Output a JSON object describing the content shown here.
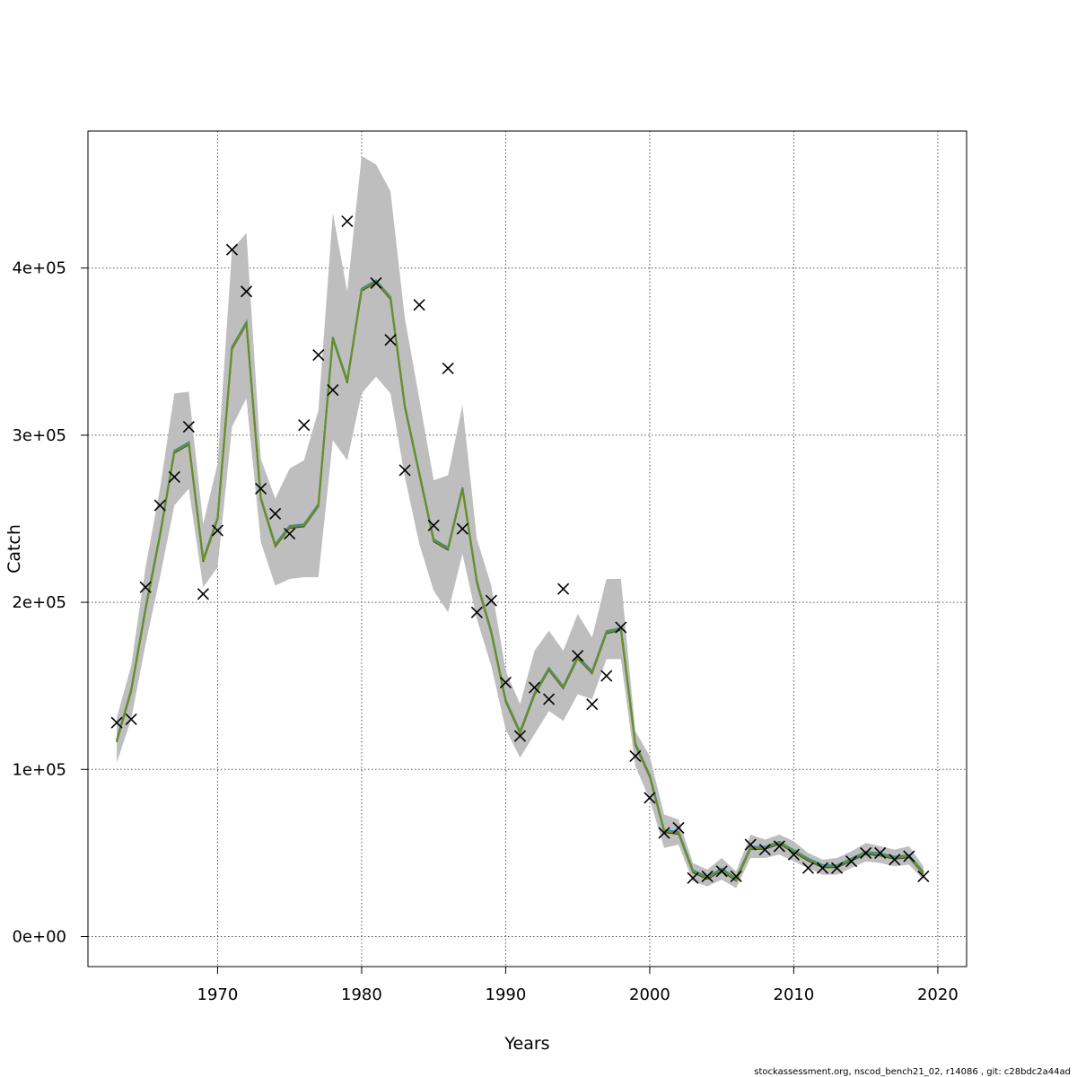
{
  "chart_data": {
    "type": "line",
    "title": "",
    "xlabel": "Years",
    "ylabel": "Catch",
    "footer": "stockassessment.org, nscod_bench21_02, r14086 , git: c28bdc2a44ad",
    "xlim": [
      1961,
      2022
    ],
    "ylim": [
      -18000,
      482000
    ],
    "x_ticks": [
      1970,
      1980,
      1990,
      2000,
      2010,
      2020
    ],
    "y_ticks": [
      0,
      100000,
      200000,
      300000,
      400000
    ],
    "y_tick_labels": [
      "0e+00",
      "1e+05",
      "2e+05",
      "3e+05",
      "4e+05"
    ],
    "grid": true,
    "colors": {
      "band": "#bebebe",
      "line_main": "#6b8e23",
      "line_alt1": "#1f6fb5",
      "line_alt2": "#20b2aa",
      "line_alt3": "#333333",
      "observed": "#000000",
      "grid": "#555555"
    },
    "years": [
      1963,
      1964,
      1965,
      1966,
      1967,
      1968,
      1969,
      1970,
      1971,
      1972,
      1973,
      1974,
      1975,
      1976,
      1977,
      1978,
      1979,
      1980,
      1981,
      1982,
      1983,
      1984,
      1985,
      1986,
      1987,
      1988,
      1989,
      1990,
      1991,
      1992,
      1993,
      1994,
      1995,
      1996,
      1997,
      1998,
      1999,
      2000,
      2001,
      2002,
      2003,
      2004,
      2005,
      2006,
      2007,
      2008,
      2009,
      2010,
      2011,
      2012,
      2013,
      2014,
      2015,
      2016,
      2017,
      2018,
      2019
    ],
    "fitted": [
      117000,
      147000,
      196000,
      240000,
      290000,
      295000,
      225000,
      250000,
      352000,
      367000,
      262000,
      234000,
      245000,
      246000,
      258000,
      358000,
      332000,
      387000,
      392000,
      382000,
      317000,
      277000,
      237000,
      232000,
      268000,
      212000,
      182000,
      141000,
      122000,
      145000,
      160000,
      149000,
      167000,
      158000,
      182000,
      184000,
      115000,
      96000,
      63000,
      62000,
      39000,
      35000,
      40000,
      34000,
      53000,
      53000,
      56000,
      51000,
      46000,
      42000,
      42000,
      46000,
      50000,
      49000,
      47000,
      48000,
      38000
    ],
    "lower": [
      104000,
      130000,
      175000,
      215000,
      258000,
      268000,
      209000,
      221000,
      305000,
      322000,
      236000,
      210000,
      214000,
      215000,
      215000,
      297000,
      285000,
      325000,
      335000,
      325000,
      275000,
      235000,
      207000,
      194000,
      229000,
      190000,
      162000,
      124000,
      107000,
      121000,
      135000,
      129000,
      145000,
      142000,
      166000,
      166000,
      102000,
      82000,
      53000,
      55000,
      33000,
      30000,
      34000,
      29000,
      47000,
      47000,
      49000,
      45000,
      41000,
      37000,
      37000,
      41000,
      45000,
      44000,
      42000,
      43000,
      34000
    ],
    "upper": [
      131000,
      162000,
      221000,
      268000,
      325000,
      326000,
      247000,
      283000,
      411000,
      421000,
      286000,
      262000,
      280000,
      285000,
      315000,
      433000,
      386000,
      467000,
      462000,
      446000,
      370000,
      322000,
      273000,
      276000,
      318000,
      238000,
      210000,
      159000,
      139000,
      171000,
      183000,
      171000,
      193000,
      179000,
      214000,
      214000,
      123000,
      108000,
      73000,
      70000,
      44000,
      40000,
      47000,
      39000,
      61000,
      58000,
      61000,
      57000,
      50000,
      46000,
      47000,
      51000,
      56000,
      54000,
      52000,
      54000,
      42000
    ],
    "observed": [
      128000,
      130000,
      209000,
      258000,
      275000,
      305000,
      205000,
      243000,
      411000,
      386000,
      268000,
      253000,
      241000,
      306000,
      348000,
      327000,
      428000,
      null,
      391000,
      357000,
      279000,
      378000,
      246000,
      340000,
      244000,
      194000,
      201000,
      152000,
      120000,
      149000,
      142000,
      208000,
      168000,
      139000,
      156000,
      185000,
      108000,
      83000,
      62000,
      65000,
      35000,
      36000,
      39000,
      36000,
      55000,
      52000,
      54000,
      49000,
      41000,
      41000,
      41000,
      45000,
      50000,
      50000,
      46000,
      48000,
      36000
    ]
  }
}
